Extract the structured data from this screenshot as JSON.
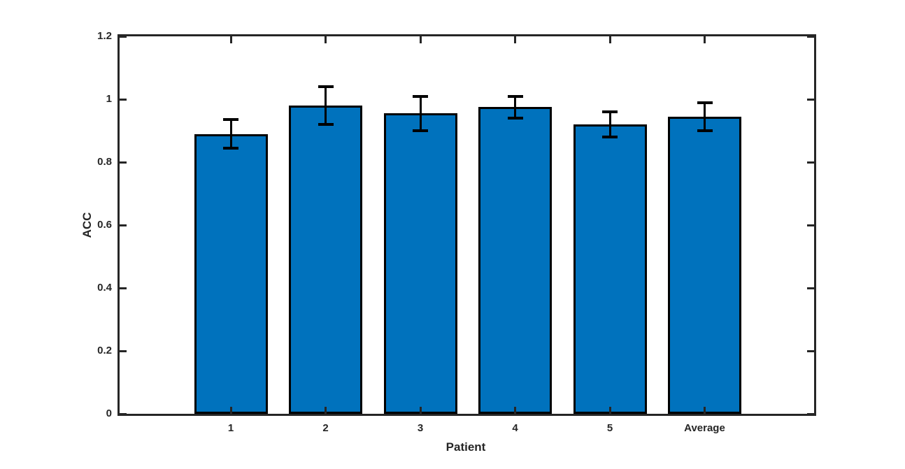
{
  "chart_data": {
    "type": "bar",
    "title": "",
    "xlabel": "Patient",
    "ylabel": "ACC",
    "categories": [
      "1",
      "2",
      "3",
      "4",
      "5",
      "Average"
    ],
    "series": [
      {
        "name": "ACC",
        "values": [
          0.89,
          0.98,
          0.955,
          0.975,
          0.92,
          0.945
        ],
        "errors": [
          0.045,
          0.06,
          0.055,
          0.035,
          0.04,
          0.045
        ]
      }
    ],
    "ylim": [
      0,
      1.2
    ],
    "yticks": [
      0,
      0.2,
      0.4,
      0.6,
      0.8,
      1,
      1.2
    ],
    "ytick_labels": [
      "0",
      "0.2",
      "0.4",
      "0.6",
      "0.8",
      "1",
      "1.2"
    ],
    "grid": false,
    "legend": "none",
    "error_bar_style": "symmetric-caps",
    "colors": {
      "bar_fill": "#0072BD",
      "bar_edge": "#000000",
      "error_bar": "#000000",
      "axis": "#262626",
      "background": "#FFFFFF"
    }
  }
}
